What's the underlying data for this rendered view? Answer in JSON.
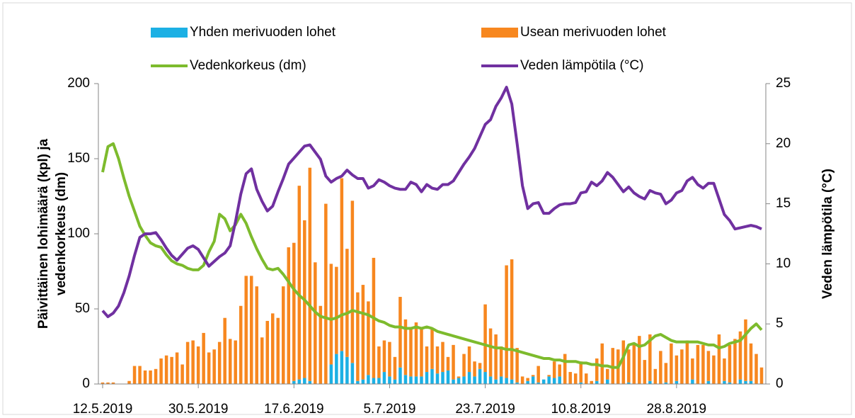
{
  "chart_data": {
    "type": "combo",
    "stacked": true,
    "y_label": [
      "Päivittäinen lohimäärä (kpl) ja",
      "vedenkorkeus (dm)"
    ],
    "y2_label": "Veden lämpötila (°C)",
    "ylim": [
      0,
      200
    ],
    "yticks": [
      0,
      50,
      100,
      150,
      200
    ],
    "y2lim": [
      0,
      25
    ],
    "y2ticks": [
      0,
      5,
      10,
      15,
      20,
      25
    ],
    "legend": "top",
    "categories": [
      "12.5.2019",
      null,
      null,
      null,
      null,
      null,
      null,
      null,
      null,
      null,
      null,
      null,
      null,
      null,
      null,
      null,
      null,
      null,
      "30.5.2019",
      null,
      null,
      null,
      null,
      null,
      null,
      null,
      null,
      null,
      null,
      null,
      null,
      null,
      null,
      null,
      null,
      null,
      "17.6.2019",
      null,
      null,
      null,
      null,
      null,
      null,
      null,
      null,
      null,
      null,
      null,
      null,
      null,
      null,
      null,
      null,
      null,
      "5.7.2019",
      null,
      null,
      null,
      null,
      null,
      null,
      null,
      null,
      null,
      null,
      null,
      null,
      null,
      null,
      null,
      null,
      null,
      "23.7.2019",
      null,
      null,
      null,
      null,
      null,
      null,
      null,
      null,
      null,
      null,
      null,
      null,
      null,
      null,
      null,
      null,
      null,
      "10.8.2019",
      null,
      null,
      null,
      null,
      null,
      null,
      null,
      null,
      null,
      null,
      null,
      null,
      null,
      null,
      null,
      null,
      null,
      "28.8.2019",
      null,
      null,
      null,
      null,
      null,
      null,
      null,
      null,
      null,
      null,
      null,
      null,
      null,
      null,
      null,
      null
    ],
    "series": [
      {
        "name": "Yhden merivuoden lohet",
        "type": "bar",
        "color": "#1cb0e4",
        "values": [
          0,
          0,
          0,
          0,
          0,
          0,
          0,
          0,
          0,
          0,
          0,
          0,
          0,
          0,
          0,
          0,
          0,
          0,
          0,
          0,
          0,
          0,
          0,
          0,
          0,
          0,
          0,
          0,
          0,
          0,
          0,
          0,
          0,
          0,
          0,
          0,
          2,
          3,
          4,
          2,
          0,
          0,
          0,
          13,
          20,
          22,
          18,
          14,
          2,
          3,
          6,
          4,
          4,
          8,
          5,
          3,
          11,
          6,
          5,
          5,
          5,
          8,
          10,
          7,
          8,
          9,
          3,
          4,
          5,
          8,
          5,
          10,
          8,
          5,
          3,
          5,
          4,
          3,
          1,
          0,
          2,
          5,
          1,
          3,
          5,
          4,
          5,
          0,
          0,
          0,
          1,
          0,
          0,
          2,
          0,
          3,
          0,
          0,
          0,
          1,
          0,
          0,
          0,
          2,
          0,
          0,
          1,
          0,
          2,
          0,
          0,
          3,
          0,
          0,
          2,
          0,
          0,
          2,
          1,
          0,
          3,
          2,
          2,
          0,
          0
        ]
      },
      {
        "name": "Usean merivuoden lohet",
        "type": "bar",
        "color": "#f7871f",
        "values": [
          1,
          1,
          1,
          0,
          0,
          2,
          12,
          12,
          9,
          9,
          10,
          17,
          19,
          18,
          21,
          13,
          28,
          29,
          25,
          34,
          21,
          23,
          28,
          44,
          30,
          29,
          52,
          72,
          72,
          65,
          31,
          42,
          47,
          44,
          65,
          91,
          92,
          129,
          105,
          142,
          81,
          52,
          120,
          67,
          58,
          115,
          72,
          108,
          59,
          63,
          49,
          80,
          21,
          21,
          23,
          15,
          47,
          37,
          33,
          36,
          33,
          17,
          27,
          18,
          20,
          9,
          23,
          1,
          15,
          17,
          10,
          4,
          45,
          32,
          30,
          20,
          75,
          80,
          23,
          5,
          2,
          1,
          11,
          0,
          1,
          11,
          8,
          20,
          8,
          7,
          14,
          7,
          2,
          15,
          27,
          7,
          24,
          23,
          29,
          22,
          27,
          32,
          16,
          31,
          10,
          22,
          13,
          27,
          17,
          23,
          29,
          14,
          26,
          26,
          20,
          19,
          33,
          15,
          25,
          30,
          32,
          41,
          25,
          20,
          11
        ]
      },
      {
        "name": "Vedenkorkeus (dm)",
        "type": "line",
        "color": "#7dbb2d",
        "values": [
          141,
          158,
          160,
          150,
          137,
          125,
          115,
          105,
          99,
          94,
          92,
          91,
          86,
          82,
          80,
          79,
          77,
          76,
          76,
          79,
          88,
          95,
          113,
          110,
          102,
          106,
          113,
          107,
          98,
          90,
          83,
          77,
          76,
          77,
          73,
          68,
          63,
          59,
          56,
          52,
          48,
          45,
          44,
          43,
          44,
          46,
          47,
          49,
          48,
          47,
          46,
          44,
          42,
          41,
          39,
          38,
          38,
          37,
          37,
          38,
          37,
          38,
          37,
          35,
          34,
          33,
          32,
          31,
          30,
          29,
          28,
          27,
          26,
          25,
          24,
          24,
          23,
          23,
          22,
          21,
          20,
          19,
          18,
          17,
          17,
          16,
          16,
          15,
          15,
          15,
          14,
          14,
          13,
          13,
          12,
          12,
          11,
          11,
          18,
          26,
          27,
          25,
          26,
          29,
          32,
          33,
          31,
          29,
          28,
          28,
          28,
          28,
          28,
          27,
          26,
          26,
          24,
          25,
          27,
          28,
          29,
          33,
          37,
          40,
          36
        ]
      },
      {
        "name": "Veden lämpötila (°C)",
        "type": "line",
        "axis": "y2",
        "color": "#7030a0",
        "values": [
          6.1,
          5.6,
          5.9,
          6.5,
          7.6,
          9,
          10.7,
          12.2,
          12.5,
          12.5,
          12.6,
          12,
          11.3,
          10.7,
          10.3,
          10.8,
          11.3,
          11.5,
          11.2,
          10.5,
          9.8,
          10.2,
          10.6,
          10.9,
          11.5,
          13.5,
          15.8,
          17.5,
          17.9,
          16.2,
          15.2,
          14.4,
          14.8,
          16,
          17.1,
          18.3,
          18.8,
          19.3,
          19.8,
          19.9,
          19.3,
          18.7,
          17.3,
          16.8,
          17.1,
          17.3,
          17.8,
          17.4,
          17.1,
          17.1,
          16.3,
          16.5,
          17,
          16.8,
          16.5,
          16.3,
          16.2,
          16.2,
          16.8,
          16.6,
          16,
          16.6,
          16.3,
          16.2,
          16.6,
          16.6,
          16.9,
          17.6,
          18.3,
          18.9,
          19.6,
          20.6,
          21.6,
          22,
          23.1,
          23.8,
          24.7,
          23.3,
          20,
          16.5,
          14.6,
          15,
          15.1,
          14.2,
          14.2,
          14.6,
          14.9,
          15,
          15,
          15.1,
          15.9,
          16,
          16.8,
          16.5,
          16.9,
          17.6,
          17.2,
          16.6,
          16,
          16.4,
          15.9,
          15.6,
          15.4,
          16.1,
          15.9,
          15.8,
          15,
          15.3,
          15.9,
          16.1,
          16.9,
          17.2,
          16.6,
          16.3,
          16.7,
          16.7,
          15.4,
          14.1,
          13.6,
          12.9,
          13,
          13.1,
          13.2,
          13.1,
          12.9
        ]
      }
    ]
  }
}
